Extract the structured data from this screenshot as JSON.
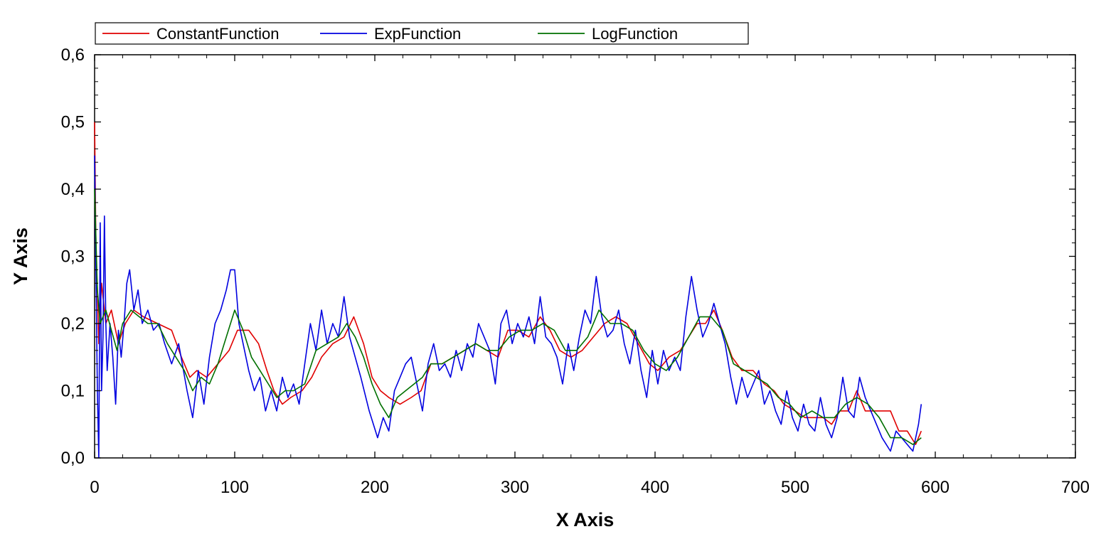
{
  "chart_data": {
    "type": "line",
    "title": "",
    "xlabel": "X Axis",
    "ylabel": "Y Axis",
    "xlim": [
      0,
      700
    ],
    "ylim": [
      0,
      0.6
    ],
    "x_ticks": [
      "0",
      "100",
      "200",
      "300",
      "400",
      "500",
      "600",
      "700"
    ],
    "y_ticks": [
      "0,0",
      "0,1",
      "0,2",
      "0,3",
      "0,4",
      "0,5",
      "0,6"
    ],
    "grid": false,
    "legend_position": "top",
    "series": [
      {
        "name": "ConstantFunction",
        "color": "#e00000",
        "x": [
          0,
          1,
          2,
          3,
          5,
          8,
          12,
          17,
          22,
          28,
          35,
          45,
          55,
          62,
          68,
          73,
          80,
          88,
          96,
          102,
          110,
          117,
          123,
          128,
          134,
          140,
          148,
          155,
          162,
          170,
          178,
          185,
          192,
          198,
          204,
          210,
          218,
          226,
          233,
          240,
          248,
          256,
          264,
          272,
          280,
          288,
          295,
          302,
          310,
          318,
          325,
          332,
          340,
          348,
          356,
          364,
          372,
          380,
          388,
          396,
          402,
          410,
          418,
          424,
          430,
          436,
          442,
          448,
          455,
          462,
          470,
          478,
          485,
          492,
          500,
          507,
          514,
          520,
          526,
          532,
          538,
          544,
          550,
          556,
          562,
          568,
          574,
          580,
          586,
          590
        ],
        "y": [
          0.5,
          0.3,
          0.25,
          0.17,
          0.26,
          0.2,
          0.22,
          0.17,
          0.2,
          0.22,
          0.21,
          0.2,
          0.19,
          0.15,
          0.12,
          0.13,
          0.12,
          0.14,
          0.16,
          0.19,
          0.19,
          0.17,
          0.13,
          0.1,
          0.08,
          0.09,
          0.1,
          0.12,
          0.15,
          0.17,
          0.18,
          0.21,
          0.17,
          0.12,
          0.1,
          0.09,
          0.08,
          0.09,
          0.1,
          0.14,
          0.14,
          0.15,
          0.16,
          0.17,
          0.16,
          0.15,
          0.19,
          0.19,
          0.18,
          0.21,
          0.19,
          0.16,
          0.15,
          0.16,
          0.18,
          0.2,
          0.21,
          0.2,
          0.17,
          0.14,
          0.13,
          0.15,
          0.16,
          0.18,
          0.2,
          0.2,
          0.22,
          0.19,
          0.15,
          0.13,
          0.13,
          0.11,
          0.1,
          0.08,
          0.07,
          0.06,
          0.06,
          0.06,
          0.05,
          0.07,
          0.07,
          0.1,
          0.07,
          0.07,
          0.07,
          0.07,
          0.04,
          0.04,
          0.02,
          0.04
        ]
      },
      {
        "name": "ExpFunction",
        "color": "#0000e0",
        "x": [
          0,
          2,
          3,
          4,
          5,
          6,
          7,
          8,
          9,
          11,
          13,
          15,
          17,
          19,
          21,
          23,
          25,
          28,
          31,
          34,
          38,
          42,
          46,
          50,
          55,
          60,
          66,
          70,
          74,
          78,
          82,
          86,
          90,
          94,
          97,
          100,
          103,
          106,
          110,
          114,
          118,
          122,
          126,
          130,
          134,
          138,
          142,
          146,
          150,
          154,
          158,
          162,
          166,
          170,
          174,
          178,
          182,
          186,
          190,
          196,
          202,
          206,
          210,
          214,
          218,
          222,
          226,
          230,
          234,
          238,
          242,
          246,
          250,
          254,
          258,
          262,
          266,
          270,
          274,
          278,
          282,
          286,
          290,
          294,
          298,
          302,
          306,
          310,
          314,
          318,
          322,
          326,
          330,
          334,
          338,
          342,
          346,
          350,
          354,
          358,
          362,
          366,
          370,
          374,
          378,
          382,
          386,
          390,
          394,
          398,
          402,
          406,
          410,
          414,
          418,
          422,
          426,
          430,
          434,
          438,
          442,
          446,
          450,
          454,
          458,
          462,
          466,
          470,
          474,
          478,
          482,
          486,
          490,
          494,
          498,
          502,
          506,
          510,
          514,
          518,
          522,
          526,
          530,
          534,
          538,
          542,
          546,
          550,
          556,
          562,
          568,
          572,
          576,
          580,
          584,
          588,
          590
        ],
        "y": [
          0.45,
          0.1,
          0.0,
          0.35,
          0.1,
          0.18,
          0.36,
          0.2,
          0.13,
          0.2,
          0.15,
          0.08,
          0.19,
          0.15,
          0.2,
          0.26,
          0.28,
          0.22,
          0.25,
          0.2,
          0.22,
          0.19,
          0.2,
          0.17,
          0.14,
          0.17,
          0.1,
          0.06,
          0.13,
          0.08,
          0.15,
          0.2,
          0.22,
          0.25,
          0.28,
          0.28,
          0.2,
          0.17,
          0.13,
          0.1,
          0.12,
          0.07,
          0.1,
          0.07,
          0.12,
          0.09,
          0.11,
          0.08,
          0.14,
          0.2,
          0.16,
          0.22,
          0.17,
          0.2,
          0.18,
          0.24,
          0.18,
          0.15,
          0.12,
          0.07,
          0.03,
          0.06,
          0.04,
          0.1,
          0.12,
          0.14,
          0.15,
          0.11,
          0.07,
          0.14,
          0.17,
          0.13,
          0.14,
          0.12,
          0.16,
          0.13,
          0.17,
          0.15,
          0.2,
          0.18,
          0.16,
          0.11,
          0.2,
          0.22,
          0.17,
          0.2,
          0.18,
          0.21,
          0.17,
          0.24,
          0.18,
          0.17,
          0.15,
          0.11,
          0.17,
          0.13,
          0.18,
          0.22,
          0.2,
          0.27,
          0.21,
          0.18,
          0.19,
          0.22,
          0.17,
          0.14,
          0.19,
          0.13,
          0.09,
          0.16,
          0.11,
          0.16,
          0.13,
          0.15,
          0.13,
          0.21,
          0.27,
          0.22,
          0.18,
          0.2,
          0.23,
          0.2,
          0.17,
          0.12,
          0.08,
          0.12,
          0.09,
          0.11,
          0.13,
          0.08,
          0.1,
          0.07,
          0.05,
          0.1,
          0.06,
          0.04,
          0.08,
          0.05,
          0.04,
          0.09,
          0.05,
          0.03,
          0.06,
          0.12,
          0.07,
          0.06,
          0.12,
          0.09,
          0.06,
          0.03,
          0.01,
          0.04,
          0.03,
          0.02,
          0.01,
          0.05,
          0.08
        ]
      },
      {
        "name": "LogFunction",
        "color": "#007000",
        "x": [
          0,
          2,
          4,
          8,
          12,
          16,
          20,
          26,
          32,
          38,
          45,
          52,
          58,
          64,
          70,
          76,
          82,
          88,
          94,
          100,
          106,
          112,
          118,
          124,
          130,
          136,
          142,
          150,
          158,
          166,
          174,
          180,
          186,
          192,
          198,
          204,
          210,
          216,
          222,
          228,
          234,
          240,
          248,
          256,
          264,
          272,
          280,
          288,
          296,
          304,
          312,
          320,
          328,
          336,
          344,
          352,
          360,
          368,
          376,
          384,
          392,
          400,
          408,
          416,
          424,
          432,
          440,
          448,
          456,
          464,
          472,
          480,
          488,
          496,
          504,
          512,
          520,
          528,
          536,
          544,
          552,
          560,
          568,
          576,
          584,
          590
        ],
        "y": [
          0.4,
          0.25,
          0.2,
          0.22,
          0.19,
          0.16,
          0.2,
          0.22,
          0.21,
          0.2,
          0.2,
          0.17,
          0.15,
          0.13,
          0.1,
          0.12,
          0.11,
          0.14,
          0.18,
          0.22,
          0.19,
          0.15,
          0.13,
          0.11,
          0.09,
          0.1,
          0.1,
          0.11,
          0.16,
          0.17,
          0.18,
          0.2,
          0.18,
          0.15,
          0.11,
          0.08,
          0.06,
          0.09,
          0.1,
          0.11,
          0.12,
          0.14,
          0.14,
          0.15,
          0.16,
          0.17,
          0.16,
          0.16,
          0.18,
          0.19,
          0.19,
          0.2,
          0.19,
          0.16,
          0.16,
          0.18,
          0.22,
          0.2,
          0.2,
          0.19,
          0.16,
          0.14,
          0.13,
          0.15,
          0.18,
          0.21,
          0.21,
          0.19,
          0.14,
          0.13,
          0.12,
          0.11,
          0.09,
          0.08,
          0.06,
          0.07,
          0.06,
          0.06,
          0.08,
          0.09,
          0.08,
          0.06,
          0.03,
          0.03,
          0.02,
          0.03
        ]
      }
    ]
  }
}
